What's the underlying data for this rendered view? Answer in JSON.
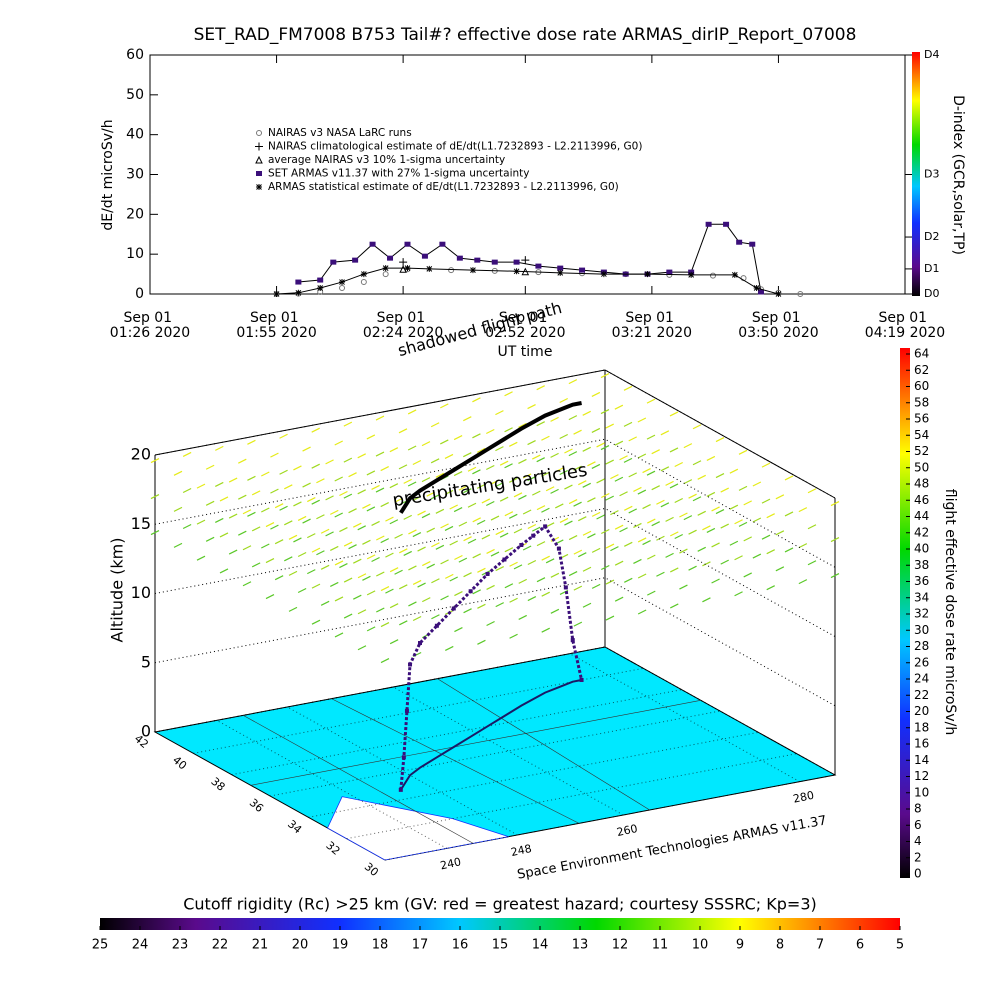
{
  "chart_data": [
    {
      "type": "line",
      "title": "SET_RAD_FM7008  B753 Tail#? effective dose rate ARMAS_dirIP_Report_07008",
      "ylabel": "dE/dt microSv/h",
      "xlabel": "UT time",
      "ylim": [
        0,
        60
      ],
      "yticks": [
        0,
        10,
        20,
        30,
        40,
        50,
        60
      ],
      "xlim": [
        "2020-09-01T01:26",
        "2020-09-01T04:19"
      ],
      "xticks": [
        {
          "value": "2020-09-01T01:26",
          "label": "Sep 01\n01:26 2020"
        },
        {
          "value": "2020-09-01T01:55",
          "label": "Sep 01\n01:55 2020"
        },
        {
          "value": "2020-09-01T02:24",
          "label": "Sep 01\n02:24 2020"
        },
        {
          "value": "2020-09-01T02:52",
          "label": "Sep 01\n02:52 2020"
        },
        {
          "value": "2020-09-01T03:21",
          "label": "Sep 01\n03:21 2020"
        },
        {
          "value": "2020-09-01T03:50",
          "label": "Sep 01\n03:50 2020"
        },
        {
          "value": "2020-09-01T04:19",
          "label": "Sep 01\n04:19 2020"
        }
      ],
      "y2label": "D-index (GCR,solar,TP)",
      "y2lim": [
        0,
        60
      ],
      "y2ticks": [
        {
          "value": 0,
          "label": "D0"
        },
        {
          "value": 6.3,
          "label": "D1"
        },
        {
          "value": 14.3,
          "label": "D2"
        },
        {
          "value": 30,
          "label": "D3"
        },
        {
          "value": 60,
          "label": "D4"
        }
      ],
      "series": [
        {
          "name": "NAIRAS v3 NASA LaRC runs",
          "color": "#777777",
          "marker": "circle-open",
          "x": [
            "2020-09-01T01:55",
            "2020-09-01T02:00",
            "2020-09-01T02:05",
            "2020-09-01T02:10",
            "2020-09-01T02:15",
            "2020-09-01T02:20",
            "2020-09-01T02:25",
            "2020-09-01T02:35",
            "2020-09-01T02:45",
            "2020-09-01T02:55",
            "2020-09-01T03:05",
            "2020-09-01T03:15",
            "2020-09-01T03:25",
            "2020-09-01T03:35",
            "2020-09-01T03:42",
            "2020-09-01T03:46",
            "2020-09-01T03:50",
            "2020-09-01T03:55"
          ],
          "values": [
            0,
            0.1,
            0.5,
            1.5,
            3,
            5,
            6.2,
            6,
            5.8,
            5.5,
            5.2,
            5,
            4.8,
            4.6,
            4,
            1.2,
            0.3,
            0
          ]
        },
        {
          "name": "NAIRAS climatological estimate of dE/dt(L1.7232893 - L2.2113996, G0)",
          "color": "#000000",
          "marker": "plus",
          "x": [
            "2020-09-01T02:24",
            "2020-09-01T02:52"
          ],
          "values": [
            8,
            8.5
          ]
        },
        {
          "name": "average NAIRAS v3 10% 1-sigma uncertainty",
          "color": "#000000",
          "marker": "triangle",
          "x": [
            "2020-09-01T02:24",
            "2020-09-01T02:52"
          ],
          "values": [
            6.2,
            5.6
          ]
        },
        {
          "name": "SET ARMAS v11.37 with 27% 1-sigma uncertainty",
          "color": "#3b0f7a",
          "marker": "square",
          "line": true,
          "x": [
            "2020-09-01T02:00",
            "2020-09-01T02:05",
            "2020-09-01T02:08",
            "2020-09-01T02:13",
            "2020-09-01T02:17",
            "2020-09-01T02:21",
            "2020-09-01T02:25",
            "2020-09-01T02:29",
            "2020-09-01T02:33",
            "2020-09-01T02:37",
            "2020-09-01T02:41",
            "2020-09-01T02:45",
            "2020-09-01T02:50",
            "2020-09-01T02:55",
            "2020-09-01T03:00",
            "2020-09-01T03:05",
            "2020-09-01T03:10",
            "2020-09-01T03:15",
            "2020-09-01T03:20",
            "2020-09-01T03:25",
            "2020-09-01T03:30",
            "2020-09-01T03:34",
            "2020-09-01T03:38",
            "2020-09-01T03:41",
            "2020-09-01T03:44",
            "2020-09-01T03:46"
          ],
          "values": [
            3,
            3.5,
            8,
            8.5,
            12.5,
            9,
            12.5,
            9.5,
            12.5,
            9,
            8.5,
            8,
            8,
            7,
            6.5,
            6,
            5.5,
            5,
            5,
            5.5,
            5.5,
            17.5,
            17.5,
            13,
            12.5,
            0.5
          ]
        },
        {
          "name": "ARMAS statistical estimate of dE/dt(L1.7232893 - L2.2113996, G0)",
          "color": "#000000",
          "marker": "star",
          "line": true,
          "x": [
            "2020-09-01T01:55",
            "2020-09-01T02:00",
            "2020-09-01T02:05",
            "2020-09-01T02:10",
            "2020-09-01T02:15",
            "2020-09-01T02:20",
            "2020-09-01T02:25",
            "2020-09-01T02:30",
            "2020-09-01T02:40",
            "2020-09-01T02:50",
            "2020-09-01T03:00",
            "2020-09-01T03:10",
            "2020-09-01T03:20",
            "2020-09-01T03:30",
            "2020-09-01T03:40",
            "2020-09-01T03:45",
            "2020-09-01T03:50"
          ],
          "values": [
            0,
            0.3,
            1.5,
            3,
            5,
            6.5,
            6.5,
            6.3,
            6,
            5.7,
            5.3,
            5,
            5,
            4.8,
            4.8,
            1.5,
            0
          ]
        }
      ]
    },
    {
      "type": "line3d",
      "ylabel": "Altitude (km)",
      "ylim": [
        0,
        20
      ],
      "yticks": [
        0,
        5,
        10,
        15,
        20
      ],
      "xlim": [
        233,
        284
      ],
      "xticks": [
        240,
        248,
        260,
        280
      ],
      "lat_lim": [
        30,
        42
      ],
      "lat_ticks": [
        42,
        40,
        38,
        36,
        34,
        32,
        30
      ],
      "series": [
        {
          "color": "#3b0f7a",
          "x": [
            245,
            246,
            247,
            248,
            250,
            253,
            256,
            259,
            262,
            265,
            268,
            270,
            272,
            274,
            275,
            276,
            277
          ],
          "lat": [
            34.7,
            35,
            35.3,
            35.6,
            36,
            36.5,
            37,
            37.5,
            38,
            38.5,
            39,
            39.3,
            39.6,
            39.8,
            39.9,
            40,
            40
          ],
          "values": [
            0,
            2,
            5,
            8,
            9,
            9.5,
            10,
            10.5,
            11,
            11.3,
            11.6,
            11.8,
            12,
            10,
            7,
            3,
            0
          ]
        }
      ],
      "annotations": [
        "shadowed flight path",
        "precipitating particles"
      ],
      "footer": "Space Environment Technologies ARMAS v11.37",
      "colorbars": [
        {
          "label": "flight effective dose rate microSv/h",
          "lim": [
            0,
            64
          ],
          "ticks": [
            0,
            2,
            4,
            6,
            8,
            10,
            12,
            14,
            16,
            18,
            20,
            22,
            24,
            26,
            28,
            30,
            32,
            34,
            36,
            38,
            40,
            42,
            44,
            46,
            48,
            50,
            52,
            54,
            56,
            58,
            60,
            62,
            64
          ]
        },
        {
          "label": "Cutoff rigidity (Rc) >25 km (GV: red = greatest hazard; courtesy SSSRC; Kp=3)",
          "lim": [
            25,
            5
          ],
          "ticks": [
            25,
            24,
            23,
            22,
            21,
            20,
            19,
            18,
            17,
            16,
            15,
            14,
            13,
            12,
            11,
            10,
            9,
            8,
            7,
            6,
            5
          ]
        }
      ]
    }
  ]
}
